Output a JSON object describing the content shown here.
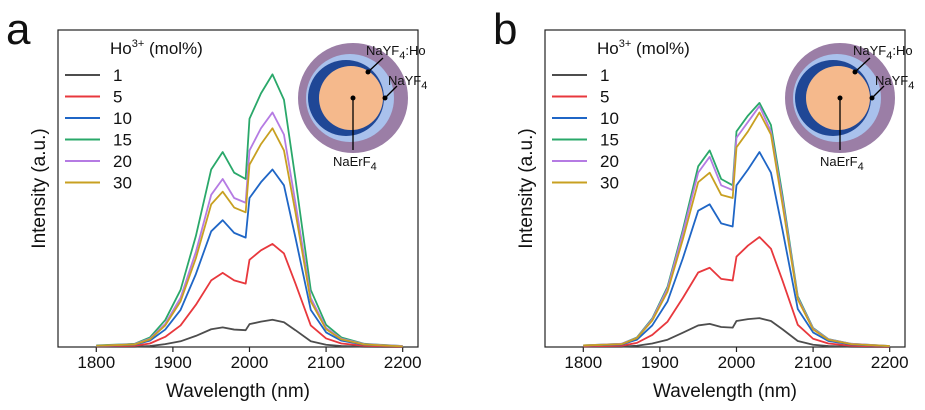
{
  "chart_data": [
    {
      "type": "line",
      "panel": "a",
      "xlabel": "Wavelength (nm)",
      "ylabel": "Intensity (a.u.)",
      "legend_title": [
        "Ho",
        "3+",
        " (mol%)"
      ],
      "inset_labels": [
        [
          "NaYF",
          "4",
          ":Ho"
        ],
        [
          "NaYF",
          "4"
        ],
        [
          "NaErF",
          "4"
        ]
      ],
      "x": [
        1800,
        1850,
        1870,
        1890,
        1910,
        1930,
        1950,
        1965,
        1980,
        1995,
        2000,
        2015,
        2030,
        2045,
        2060,
        2080,
        2100,
        2120,
        2150,
        2200
      ],
      "xlim": [
        1750,
        2220
      ],
      "xticks": [
        1800,
        1900,
        2000,
        2100,
        2200
      ],
      "ylim": [
        0,
        100
      ],
      "series": [
        {
          "name": "1",
          "color": "#4d4d4d",
          "values": [
            0.1,
            0.1,
            0.3,
            0.9,
            1.8,
            3.5,
            5.6,
            6.2,
            5.5,
            5.3,
            7.2,
            8,
            8.6,
            7.8,
            5.3,
            1.8,
            0.7,
            0.3,
            0.1,
            0
          ]
        },
        {
          "name": "5",
          "color": "#e8383d",
          "values": [
            0.2,
            0.4,
            1.1,
            3.2,
            6.8,
            13.3,
            21,
            23.4,
            21,
            20,
            27.5,
            30.5,
            32.5,
            29.5,
            20,
            6.8,
            2.7,
            1.1,
            0.4,
            0.1
          ]
        },
        {
          "name": "10",
          "color": "#1f66c6",
          "values": [
            0.3,
            0.7,
            2,
            5.5,
            11.7,
            23,
            36.5,
            40,
            36,
            34.5,
            47,
            52,
            56,
            51,
            34.5,
            11.7,
            4.6,
            2,
            0.7,
            0.2
          ]
        },
        {
          "name": "15",
          "color": "#2aa86a",
          "values": [
            0.5,
            1,
            3,
            8.5,
            18,
            35,
            56,
            61.5,
            55,
            53,
            72,
            80,
            86,
            78,
            53,
            18,
            7,
            3,
            1,
            0.3
          ]
        },
        {
          "name": "20",
          "color": "#b57be3",
          "values": [
            0.4,
            0.9,
            2.6,
            7.3,
            15.5,
            30,
            48,
            53,
            47,
            45.5,
            62,
            69,
            74,
            67,
            45.5,
            15.5,
            6,
            2.6,
            0.9,
            0.3
          ]
        },
        {
          "name": "30",
          "color": "#c8a021",
          "values": [
            0.4,
            0.8,
            2.4,
            6.8,
            14.4,
            28,
            45,
            49,
            44,
            42.5,
            57.5,
            64,
            69,
            62,
            42.5,
            14.4,
            5.6,
            2.4,
            0.8,
            0.2
          ]
        }
      ]
    },
    {
      "type": "line",
      "panel": "b",
      "xlabel": "Wavelength (nm)",
      "ylabel": "Intensity (a.u.)",
      "legend_title": [
        "Ho",
        "3+",
        " (mol%)"
      ],
      "inset_labels": [
        [
          "NaYF",
          "4",
          ":Ho"
        ],
        [
          "NaYF",
          "4"
        ],
        [
          "NaErF",
          "4"
        ]
      ],
      "x": [
        1800,
        1850,
        1870,
        1890,
        1910,
        1930,
        1950,
        1965,
        1980,
        1995,
        2000,
        2015,
        2030,
        2045,
        2060,
        2080,
        2100,
        2120,
        2150,
        2200
      ],
      "xlim": [
        1750,
        2220
      ],
      "xticks": [
        1800,
        1900,
        2000,
        2100,
        2200
      ],
      "ylim": [
        0,
        100
      ],
      "series": [
        {
          "name": "1",
          "color": "#4d4d4d",
          "values": [
            0.1,
            0.1,
            0.4,
            1.1,
            2.3,
            4.5,
            6.8,
            7.3,
            6.3,
            6.1,
            8.2,
            8.8,
            9.1,
            8.2,
            5.6,
            1.9,
            0.7,
            0.3,
            0.1,
            0
          ]
        },
        {
          "name": "5",
          "color": "#e8383d",
          "values": [
            0.2,
            0.4,
            1.3,
            3.8,
            8,
            15.5,
            23.5,
            25,
            21.5,
            21,
            28.5,
            32,
            34.7,
            31,
            21,
            7,
            2.6,
            1.1,
            0.4,
            0.1
          ]
        },
        {
          "name": "10",
          "color": "#1f66c6",
          "values": [
            0.4,
            0.8,
            2.3,
            6.8,
            14.4,
            28,
            43,
            45,
            39,
            38,
            51,
            56,
            61.5,
            55,
            37,
            12,
            4.6,
            1.9,
            0.8,
            0.2
          ]
        },
        {
          "name": "15",
          "color": "#2aa86a",
          "values": [
            0.5,
            1,
            3,
            9,
            19,
            37,
            57,
            62,
            53,
            51,
            68,
            73,
            77,
            70,
            48,
            16,
            6,
            2.5,
            1,
            0.3
          ]
        },
        {
          "name": "20",
          "color": "#b57be3",
          "values": [
            0.5,
            1,
            2.9,
            8.7,
            18.4,
            36,
            55,
            60,
            51,
            49.5,
            66,
            71,
            76,
            68,
            46.5,
            15.5,
            5.8,
            2.4,
            1,
            0.3
          ]
        },
        {
          "name": "30",
          "color": "#c8a021",
          "values": [
            0.5,
            0.9,
            2.8,
            8.3,
            17.5,
            34,
            52,
            55,
            48,
            47,
            63,
            68,
            74,
            67,
            45,
            15,
            5.5,
            2.3,
            0.9,
            0.3
          ]
        }
      ]
    }
  ]
}
